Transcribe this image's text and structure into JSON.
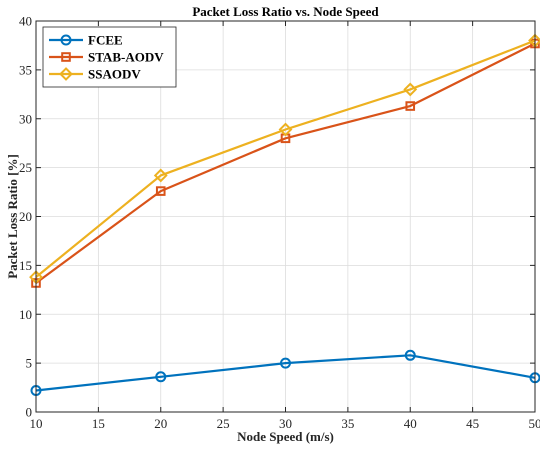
{
  "chart_data": {
    "type": "line",
    "title": "Packet Loss Ratio vs. Node Speed",
    "xlabel": "Node Speed (m/s)",
    "ylabel": "Packet Loss Ratio [%]",
    "xlim": [
      10,
      50
    ],
    "ylim": [
      0,
      40
    ],
    "xticks": [
      "10",
      "15",
      "20",
      "25",
      "30",
      "35",
      "40",
      "45",
      "50"
    ],
    "yticks": [
      "0",
      "5",
      "10",
      "15",
      "20",
      "25",
      "30",
      "35",
      "40"
    ],
    "grid": true,
    "legend_position": "top-left",
    "x": [
      10,
      20,
      30,
      40,
      50
    ],
    "series": [
      {
        "name": "FCEE",
        "values": [
          2.2,
          3.6,
          5.0,
          5.8,
          3.5
        ],
        "color": "#0072BD",
        "marker": "circle"
      },
      {
        "name": "STAB-AODV",
        "values": [
          13.2,
          22.6,
          28.0,
          31.3,
          37.7
        ],
        "color": "#D95319",
        "marker": "square"
      },
      {
        "name": "SSAODV",
        "values": [
          13.8,
          24.2,
          28.9,
          33.0,
          38.0
        ],
        "color": "#EDB120",
        "marker": "diamond"
      }
    ]
  }
}
